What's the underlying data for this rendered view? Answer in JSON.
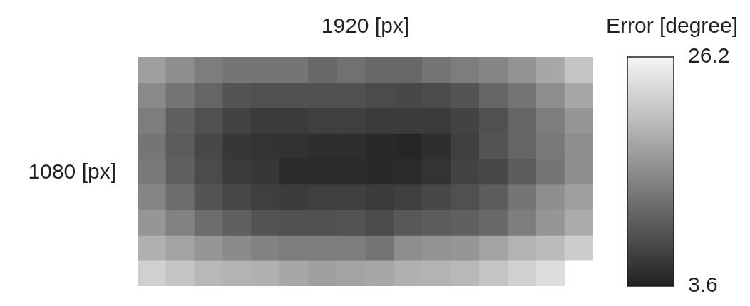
{
  "chart_data": {
    "type": "heatmap",
    "xlabel": "1920 [px]",
    "ylabel": "1080 [px]",
    "clabel": "Error [degree]",
    "categories": [
      null,
      null,
      null,
      null,
      null,
      null,
      null,
      null,
      null,
      null,
      null,
      null,
      null,
      null,
      null,
      null
    ],
    "y_categories": [
      null,
      null,
      null,
      null,
      null,
      null,
      null,
      null,
      null
    ],
    "cells": [
      [
        16.9,
        15.1,
        13.3,
        12.5,
        12.5,
        12.5,
        11.1,
        12.0,
        11.1,
        11.1,
        12.5,
        13.3,
        14.2,
        15.6,
        17.8,
        20.9
      ],
      [
        14.7,
        12.5,
        10.7,
        8.9,
        8.5,
        8.5,
        8.5,
        8.5,
        8.0,
        7.6,
        8.0,
        8.9,
        10.7,
        12.5,
        15.1,
        17.8
      ],
      [
        13.3,
        10.2,
        8.5,
        7.1,
        6.3,
        6.3,
        6.7,
        6.7,
        6.3,
        6.3,
        6.3,
        7.1,
        8.5,
        10.7,
        13.3,
        16.0
      ],
      [
        12.5,
        9.8,
        7.6,
        5.8,
        5.4,
        5.2,
        4.9,
        4.9,
        4.3,
        4.0,
        4.9,
        6.7,
        8.9,
        10.7,
        12.9,
        15.1
      ],
      [
        12.9,
        10.2,
        8.0,
        6.3,
        5.8,
        4.5,
        4.5,
        4.5,
        4.3,
        4.5,
        5.4,
        7.1,
        7.6,
        9.8,
        12.5,
        15.1
      ],
      [
        14.2,
        11.6,
        8.9,
        7.6,
        6.7,
        6.3,
        6.7,
        6.7,
        6.3,
        6.7,
        7.6,
        8.5,
        9.8,
        12.5,
        15.1,
        16.9
      ],
      [
        16.0,
        13.8,
        11.6,
        10.2,
        8.9,
        8.5,
        8.5,
        8.9,
        8.0,
        9.4,
        9.8,
        10.2,
        11.1,
        13.3,
        16.0,
        18.2
      ],
      [
        18.7,
        17.3,
        16.0,
        14.7,
        13.8,
        13.3,
        13.3,
        13.3,
        12.5,
        15.1,
        15.6,
        16.0,
        17.3,
        19.1,
        20.0,
        21.8
      ],
      [
        22.2,
        20.9,
        19.6,
        19.1,
        18.7,
        17.8,
        16.9,
        17.3,
        17.8,
        18.7,
        19.1,
        19.6,
        20.9,
        22.2,
        23.5,
        null
      ]
    ],
    "clim": [
      3.6,
      26.2
    ],
    "cticks": [
      3.6,
      26.2
    ]
  }
}
